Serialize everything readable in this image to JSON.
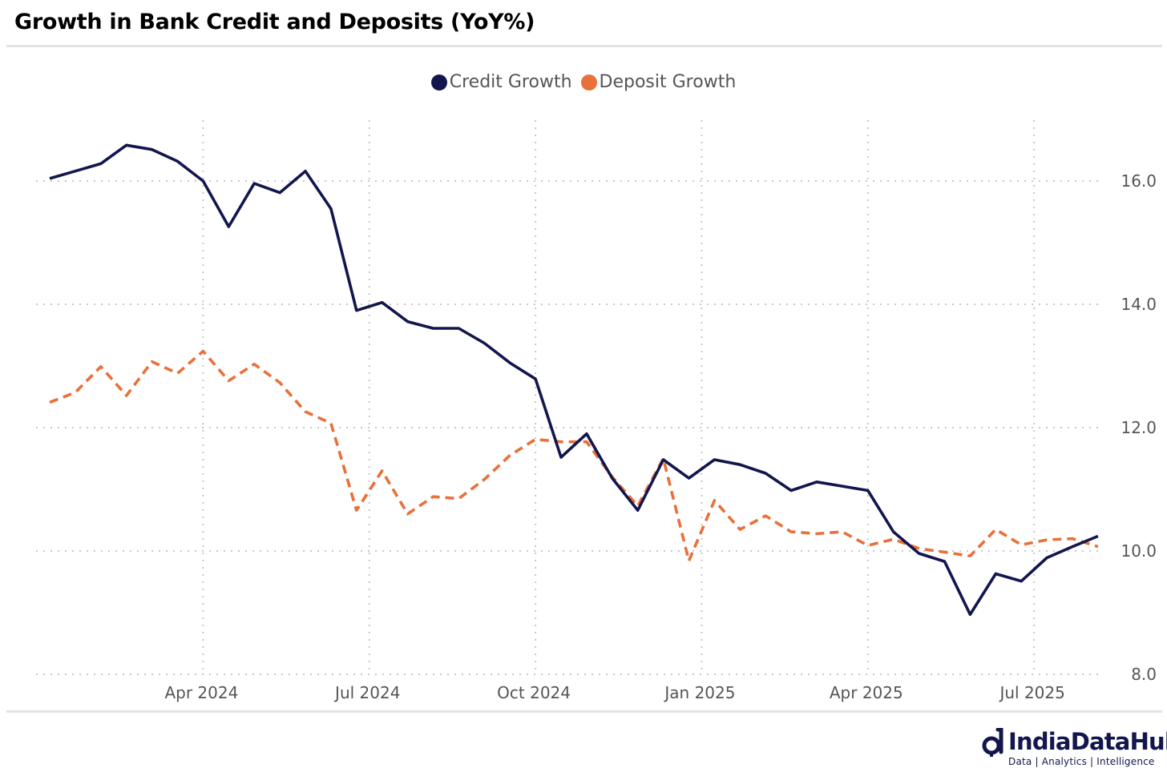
{
  "header": {
    "title": "Growth in Bank Credit and Deposits (YoY%)"
  },
  "brand": {
    "name": "IndiaDataHub",
    "tagline": "Data | Analytics | Intelligence"
  },
  "colors": {
    "credit": "#12164d",
    "deposit": "#e8703a",
    "grid": "#c8c8c8",
    "axis_text": "#555555"
  },
  "chart_data": {
    "type": "line",
    "title": "Growth in Bank Credit and Deposits (YoY%)",
    "xlabel": "",
    "ylabel": "",
    "y_axis_side": "right",
    "ylim": [
      8.0,
      17.5
    ],
    "yticks": [
      8.0,
      10.0,
      12.0,
      14.0,
      16.0
    ],
    "ytick_labels": [
      "8.0",
      "10.0",
      "12.0",
      "14.0",
      "16.0"
    ],
    "xticks": [
      {
        "label": "Apr 2024",
        "index": 6
      },
      {
        "label": "Jul 2024",
        "index": 12.5
      },
      {
        "label": "Oct 2024",
        "index": 19
      },
      {
        "label": "Jan 2025",
        "index": 25.5
      },
      {
        "label": "Apr 2025",
        "index": 32
      },
      {
        "label": "Jul 2025",
        "index": 38.5
      }
    ],
    "grid": true,
    "legend": "top-center",
    "series": [
      {
        "name": "Credit Growth",
        "style": "solid",
        "color": "#12164d",
        "values": [
          16.04,
          16.16,
          16.28,
          16.58,
          16.51,
          16.32,
          16.0,
          15.26,
          15.96,
          15.81,
          16.16,
          15.55,
          13.9,
          14.03,
          13.72,
          13.61,
          13.61,
          13.37,
          13.05,
          12.79,
          11.52,
          11.9,
          11.18,
          10.66,
          11.48,
          11.18,
          11.48,
          11.4,
          11.26,
          10.98,
          11.12,
          11.05,
          10.98,
          10.31,
          9.96,
          9.83,
          8.97,
          9.63,
          9.51,
          9.89,
          10.07,
          10.24
        ]
      },
      {
        "name": "Deposit Growth",
        "style": "dashed",
        "color": "#e8703a",
        "values": [
          12.41,
          12.57,
          12.99,
          12.52,
          13.07,
          12.88,
          13.24,
          12.76,
          13.03,
          12.73,
          12.26,
          12.07,
          10.66,
          11.3,
          10.6,
          10.88,
          10.85,
          11.16,
          11.55,
          11.81,
          11.77,
          11.77,
          11.2,
          10.73,
          11.5,
          9.84,
          10.82,
          10.35,
          10.57,
          10.31,
          10.28,
          10.31,
          10.09,
          10.19,
          10.04,
          9.98,
          9.92,
          10.35,
          10.1,
          10.18,
          10.2,
          10.07
        ]
      }
    ]
  }
}
